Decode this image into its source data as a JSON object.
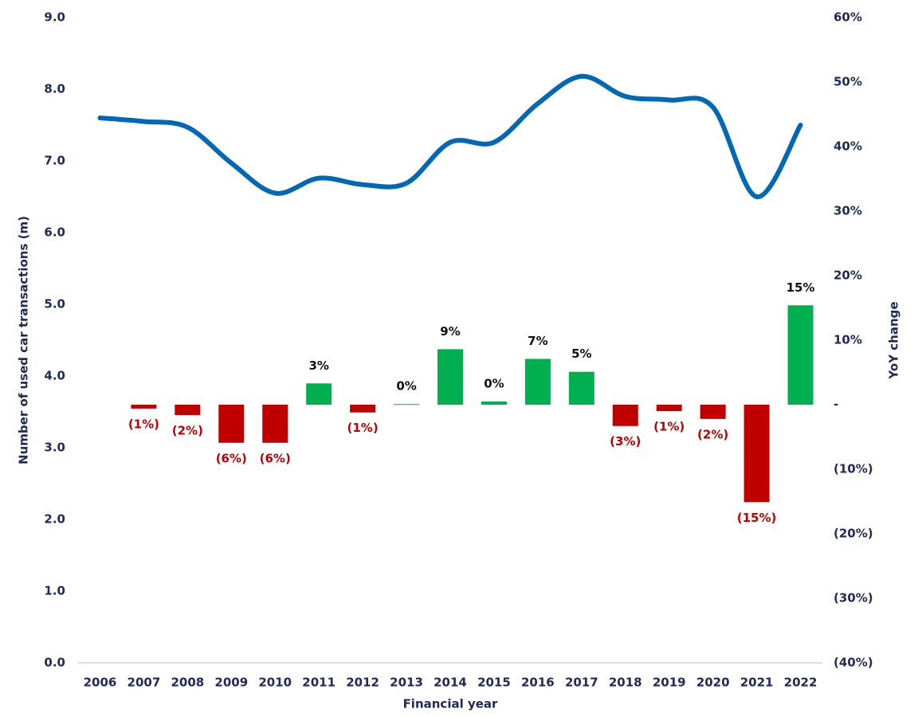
{
  "chart_data": {
    "type": "bar_line",
    "categories": [
      "2006",
      "2007",
      "2008",
      "2009",
      "2010",
      "2011",
      "2012",
      "2013",
      "2014",
      "2015",
      "2016",
      "2017",
      "2018",
      "2019",
      "2020",
      "2021",
      "2022"
    ],
    "series": [
      {
        "name": "Number of used car transactions (m)",
        "type": "line",
        "color": "#0068b5",
        "values": [
          7.6,
          7.55,
          7.47,
          6.97,
          6.55,
          6.76,
          6.67,
          6.69,
          7.26,
          7.26,
          7.8,
          8.18,
          7.9,
          7.85,
          7.75,
          6.5,
          7.5
        ]
      },
      {
        "name": "YoY change",
        "type": "bar",
        "axis": "y2",
        "positive_color": "#00b050",
        "negative_color": "#c00000",
        "values": [
          null,
          -0.6,
          -1.6,
          -5.9,
          -5.9,
          3.3,
          -1.2,
          0.1,
          8.6,
          0.5,
          7.1,
          5.1,
          -3.3,
          -1.0,
          -2.2,
          -15.1,
          15.4
        ],
        "value_labels": [
          null,
          "(1%)",
          "(2%)",
          "(6%)",
          "(6%)",
          "3%",
          "(1%)",
          "0%",
          "9%",
          "0%",
          "7%",
          "5%",
          "(3%)",
          "(1%)",
          "(2%)",
          "(15%)",
          "15%"
        ]
      }
    ],
    "x_label": "Financial year",
    "y_label": "Number of used car transactions (m)",
    "y2_label": "YoY change",
    "ylim": [
      0,
      9
    ],
    "yticks": [
      {
        "value": 0,
        "label": "0.0"
      },
      {
        "value": 1,
        "label": "1.0"
      },
      {
        "value": 2,
        "label": "2.0"
      },
      {
        "value": 3,
        "label": "3.0"
      },
      {
        "value": 4,
        "label": "4.0"
      },
      {
        "value": 5,
        "label": "5.0"
      },
      {
        "value": 6,
        "label": "6.0"
      },
      {
        "value": 7,
        "label": "7.0"
      },
      {
        "value": 8,
        "label": "8.0"
      },
      {
        "value": 9,
        "label": "9.0"
      }
    ],
    "y2lim": [
      -40,
      60
    ],
    "y2ticks": [
      {
        "value": -40,
        "label": "(40%)"
      },
      {
        "value": -30,
        "label": "(30%)"
      },
      {
        "value": -20,
        "label": "(20%)"
      },
      {
        "value": -10,
        "label": "(10%)"
      },
      {
        "value": 0,
        "label": "-"
      },
      {
        "value": 10,
        "label": "10%"
      },
      {
        "value": 20,
        "label": "20%"
      },
      {
        "value": 30,
        "label": "30%"
      },
      {
        "value": 40,
        "label": "40%"
      },
      {
        "value": 50,
        "label": "50%"
      },
      {
        "value": 60,
        "label": "60%"
      }
    ]
  }
}
